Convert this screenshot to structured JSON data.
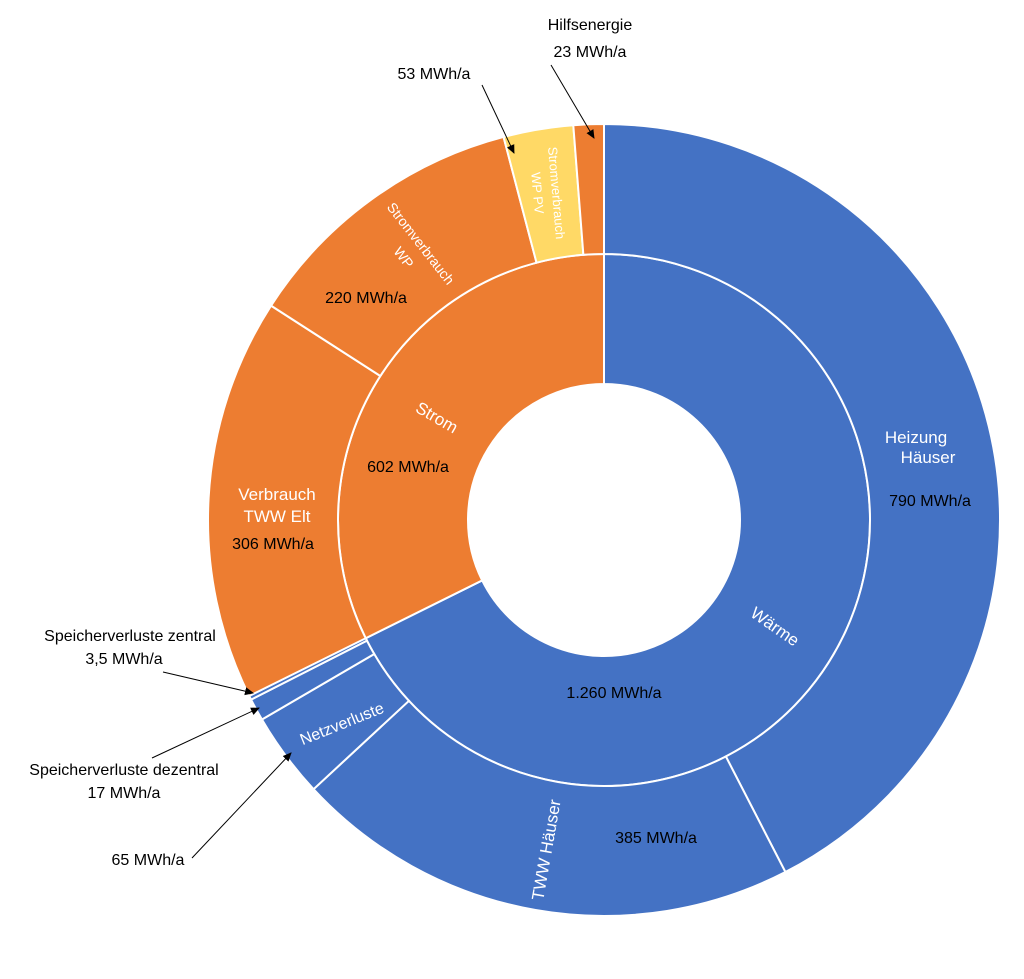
{
  "chart_data": {
    "type": "sunburst",
    "inner": [
      {
        "name": "Wärme",
        "value": 1260,
        "value_label": "1.260 MWh/a",
        "color": "#4472C4"
      },
      {
        "name": "Strom",
        "value": 602,
        "value_label": "602 MWh/a",
        "color": "#ED7D31"
      }
    ],
    "outer": [
      {
        "name": "Heizung Häuser",
        "parent": "Wärme",
        "value": 790,
        "value_label": "790 MWh/a",
        "color": "#4472C4"
      },
      {
        "name": "TWW Häuser",
        "parent": "Wärme",
        "value": 385,
        "value_label": "385 MWh/a",
        "color": "#4472C4"
      },
      {
        "name": "Netzverluste",
        "parent": "Wärme",
        "value": 65,
        "value_label": "65 MWh/a",
        "color": "#4472C4"
      },
      {
        "name": "Speicherverluste dezentral",
        "parent": "Wärme",
        "value": 17,
        "value_label": "17 MWh/a",
        "color": "#4472C4"
      },
      {
        "name": "Speicherverluste zentral",
        "parent": "Wärme",
        "value": 3.5,
        "value_label": "3,5 MWh/a",
        "color": "#4472C4"
      },
      {
        "name": "Verbrauch TWW Elt",
        "parent": "Strom",
        "value": 306,
        "value_label": "306 MWh/a",
        "color": "#ED7D31"
      },
      {
        "name": "Stromverbrauch WP",
        "parent": "Strom",
        "value": 220,
        "value_label": "220 MWh/a",
        "color": "#ED7D31"
      },
      {
        "name": "Stromverbrauch WP PV",
        "parent": "Strom",
        "value": 53,
        "value_label": "53 MWh/a",
        "color": "#FFD966"
      },
      {
        "name": "Hilfsenergie",
        "parent": "Strom",
        "value": 23,
        "value_label": "23 MWh/a",
        "color": "#ED7D31"
      }
    ]
  },
  "labels": {
    "waerme": "Wärme",
    "waerme_value": "1.260 MWh/a",
    "strom": "Strom",
    "strom_value": "602 MWh/a",
    "heizung_line1": "Heizung",
    "heizung_line2": "Häuser",
    "heizung_value": "790 MWh/a",
    "tww_haeuser": "TWW Häuser",
    "tww_value": "385 MWh/a",
    "netzverluste": "Netzverluste",
    "netz_value": "65 MWh/a",
    "verbrauch_line1": "Verbrauch",
    "verbrauch_line2": "TWW Elt",
    "verbrauch_value": "306 MWh/a",
    "wp_line1": "Stromverbrauch",
    "wp_line2": "WP",
    "wp_value": "220 MWh/a",
    "wppv_line1": "Stromverbrauch",
    "wppv_line2": "WP PV",
    "wppv_value": "53 MWh/a",
    "hilfs_name": "Hilfsenergie",
    "hilfs_value": "23 MWh/a",
    "sp_zentral_name": "Speicherverluste zentral",
    "sp_zentral_value": "3,5 MWh/a",
    "sp_dezentral_name": "Speicherverluste dezentral",
    "sp_dezentral_value": "17 MWh/a"
  }
}
